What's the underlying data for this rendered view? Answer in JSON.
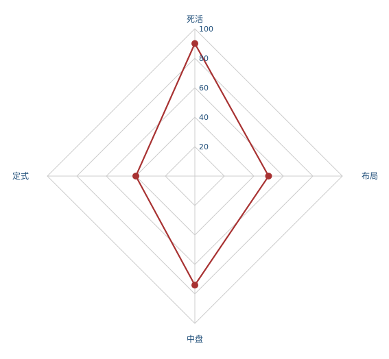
{
  "chart_data": {
    "type": "radar",
    "axes": [
      "死活",
      "布局",
      "中盘",
      "定式"
    ],
    "rlim": [
      0,
      100
    ],
    "ticks": [
      "20",
      "40",
      "60",
      "80",
      "100"
    ],
    "tick_values": [
      20,
      40,
      60,
      80,
      100
    ],
    "series": [
      {
        "values": [
          90,
          50,
          74,
          40
        ],
        "color": "#a83232"
      }
    ],
    "grid": true,
    "grid_color": "#cccccc",
    "label_color": "#1f4e79"
  }
}
